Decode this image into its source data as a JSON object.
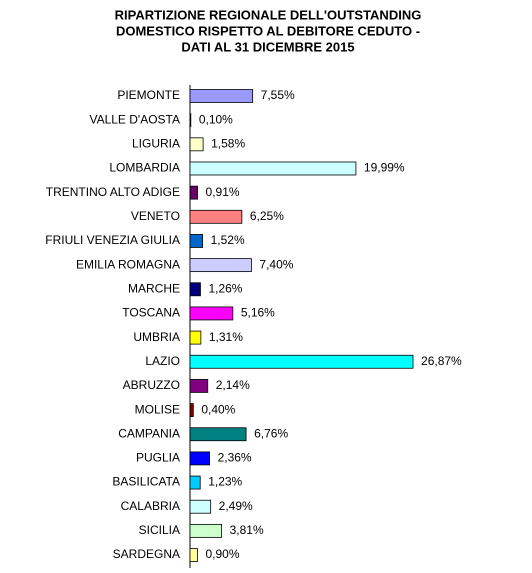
{
  "chart_data": {
    "type": "hbar",
    "title": [
      "RIPARTIZIONE REGIONALE DELL'OUTSTANDING",
      "DOMESTICO RISPETTO AL DEBITORE CEDUTO -",
      "DATI AL 31 DICEMBRE 2015"
    ],
    "categories": [
      "PIEMONTE",
      "VALLE D'AOSTA",
      "LIGURIA",
      "LOMBARDIA",
      "TRENTINO ALTO ADIGE",
      "VENETO",
      "FRIULI VENEZIA GIULIA",
      "EMILIA ROMAGNA",
      "MARCHE",
      "TOSCANA",
      "UMBRIA",
      "LAZIO",
      "ABRUZZO",
      "MOLISE",
      "CAMPANIA",
      "PUGLIA",
      "BASILICATA",
      "CALABRIA",
      "SICILIA",
      "SARDEGNA"
    ],
    "values": [
      7.55,
      0.1,
      1.58,
      19.99,
      0.91,
      6.25,
      1.52,
      7.4,
      1.26,
      5.16,
      1.31,
      26.87,
      2.14,
      0.4,
      6.76,
      2.36,
      1.23,
      2.49,
      3.81,
      0.9
    ],
    "value_labels": [
      "7,55%",
      "0,10%",
      "1,58%",
      "19,99%",
      "0,91%",
      "6,25%",
      "1,52%",
      "7,40%",
      "1,26%",
      "5,16%",
      "1,31%",
      "26,87%",
      "2,14%",
      "0,40%",
      "6,76%",
      "2,36%",
      "1,23%",
      "2,49%",
      "3,81%",
      "0,90%"
    ],
    "colors": [
      "#9999ff",
      "#333366",
      "#ffffcc",
      "#ccffff",
      "#660066",
      "#ff8080",
      "#0066cc",
      "#ccccff",
      "#000080",
      "#ff00ff",
      "#ffff00",
      "#00ffff",
      "#800080",
      "#800000",
      "#008080",
      "#0000ff",
      "#00ccff",
      "#ccffff",
      "#ccffcc",
      "#ffff99"
    ]
  }
}
